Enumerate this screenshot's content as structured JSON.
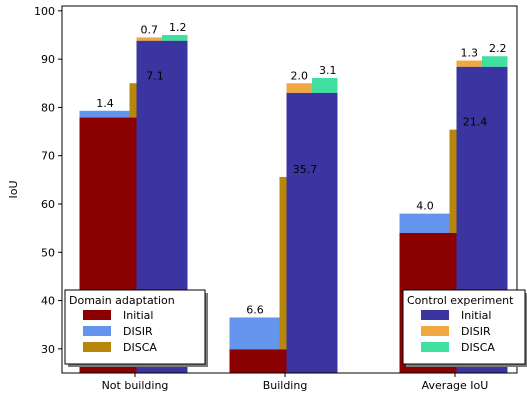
{
  "chart_data": {
    "type": "bar",
    "ylabel": "IoU",
    "ylim": [
      25,
      101
    ],
    "yticks": [
      30,
      40,
      50,
      60,
      70,
      80,
      90,
      100
    ],
    "categories": [
      "Not building",
      "Building",
      "Average IoU"
    ],
    "groups": [
      {
        "name": "Domain adaptation",
        "stacks": [
          {
            "segments": [
              {
                "series": "Initial",
                "values": [
                  77.9,
                  29.9,
                  54.0
                ]
              },
              {
                "series": "DISIR",
                "values": [
                  1.4,
                  6.6,
                  4.0
                ],
                "labels": [
                  "1.4",
                  "6.6",
                  "4.0"
                ]
              }
            ]
          },
          {
            "segments": [
              {
                "series": "Initial",
                "values": [
                  77.9,
                  29.9,
                  54.0
                ]
              },
              {
                "series": "DISCA",
                "values": [
                  7.1,
                  35.7,
                  21.4
                ],
                "labels": [
                  "7.1",
                  "35.7",
                  "21.4"
                ]
              }
            ]
          }
        ],
        "legend": [
          {
            "name": "Initial",
            "color": "#8b0000"
          },
          {
            "name": "DISIR",
            "color": "#6495ed"
          },
          {
            "name": "DISCA",
            "color": "#b8860b"
          }
        ]
      },
      {
        "name": "Control experiment",
        "stacks": [
          {
            "segments": [
              {
                "series": "Initial",
                "values": [
                  93.8,
                  83.0,
                  88.4
                ]
              },
              {
                "series": "DISIR",
                "values": [
                  0.7,
                  2.0,
                  1.3
                ],
                "labels": [
                  "0.7",
                  "2.0",
                  "1.3"
                ]
              },
              {
                "series": "DISCA",
                "values": [
                  1.2,
                  3.1,
                  2.2
                ],
                "labels": [
                  "1.2",
                  "3.1",
                  "2.2"
                ],
                "based_on_initial": true
              }
            ]
          }
        ],
        "legend": [
          {
            "name": "Initial",
            "color": "#3a35a0"
          },
          {
            "name": "DISIR",
            "color": "#f0a840"
          },
          {
            "name": "DISCA",
            "color": "#40e0a0"
          }
        ]
      }
    ],
    "grid": false,
    "legend_positions": [
      "bottom-left",
      "bottom-right"
    ]
  }
}
